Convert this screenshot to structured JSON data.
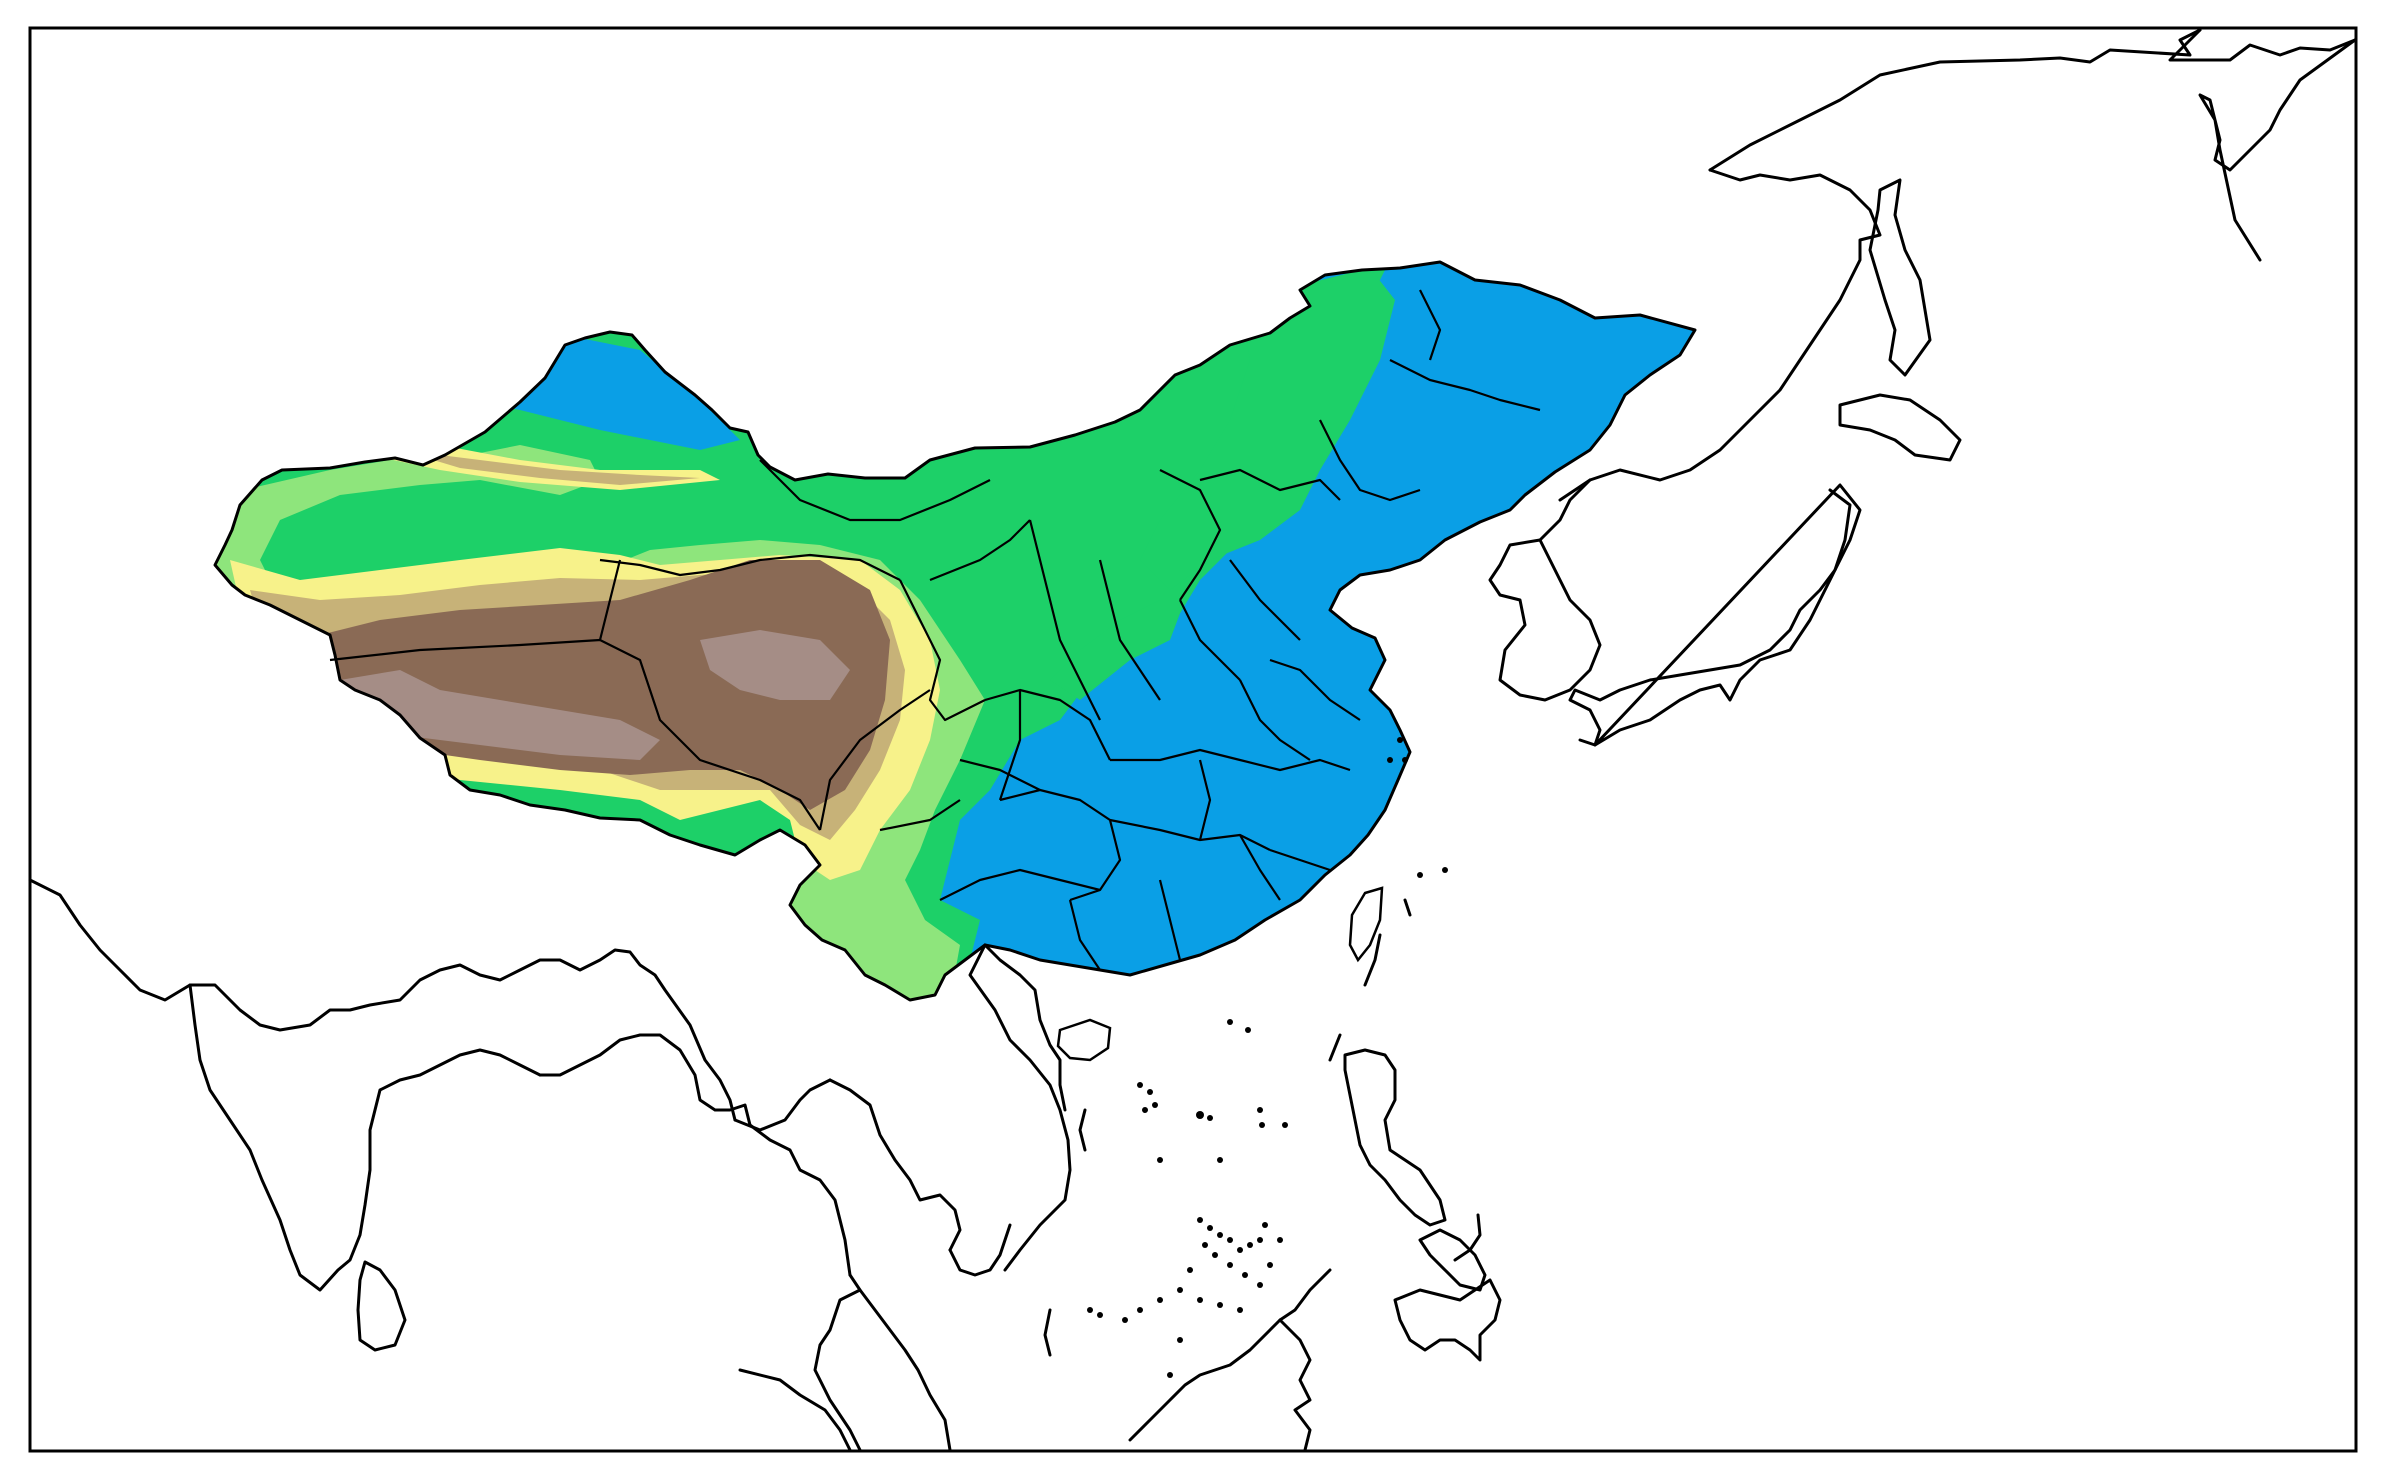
{
  "map": {
    "projection": "lambert-conformal-conic",
    "region": "East Asia",
    "filled_region": "China",
    "basemap_style": "black coastlines and province outlines on white",
    "colors": {
      "blue": "#0a9fe6",
      "green": "#1dd068",
      "light_green": "#8ee57c",
      "yellow": "#f7f28a",
      "tan": "#c7b278",
      "brown": "#8a6a55",
      "grey_brown": "#a58d86",
      "outline": "#000000",
      "background": "#ffffff"
    }
  }
}
